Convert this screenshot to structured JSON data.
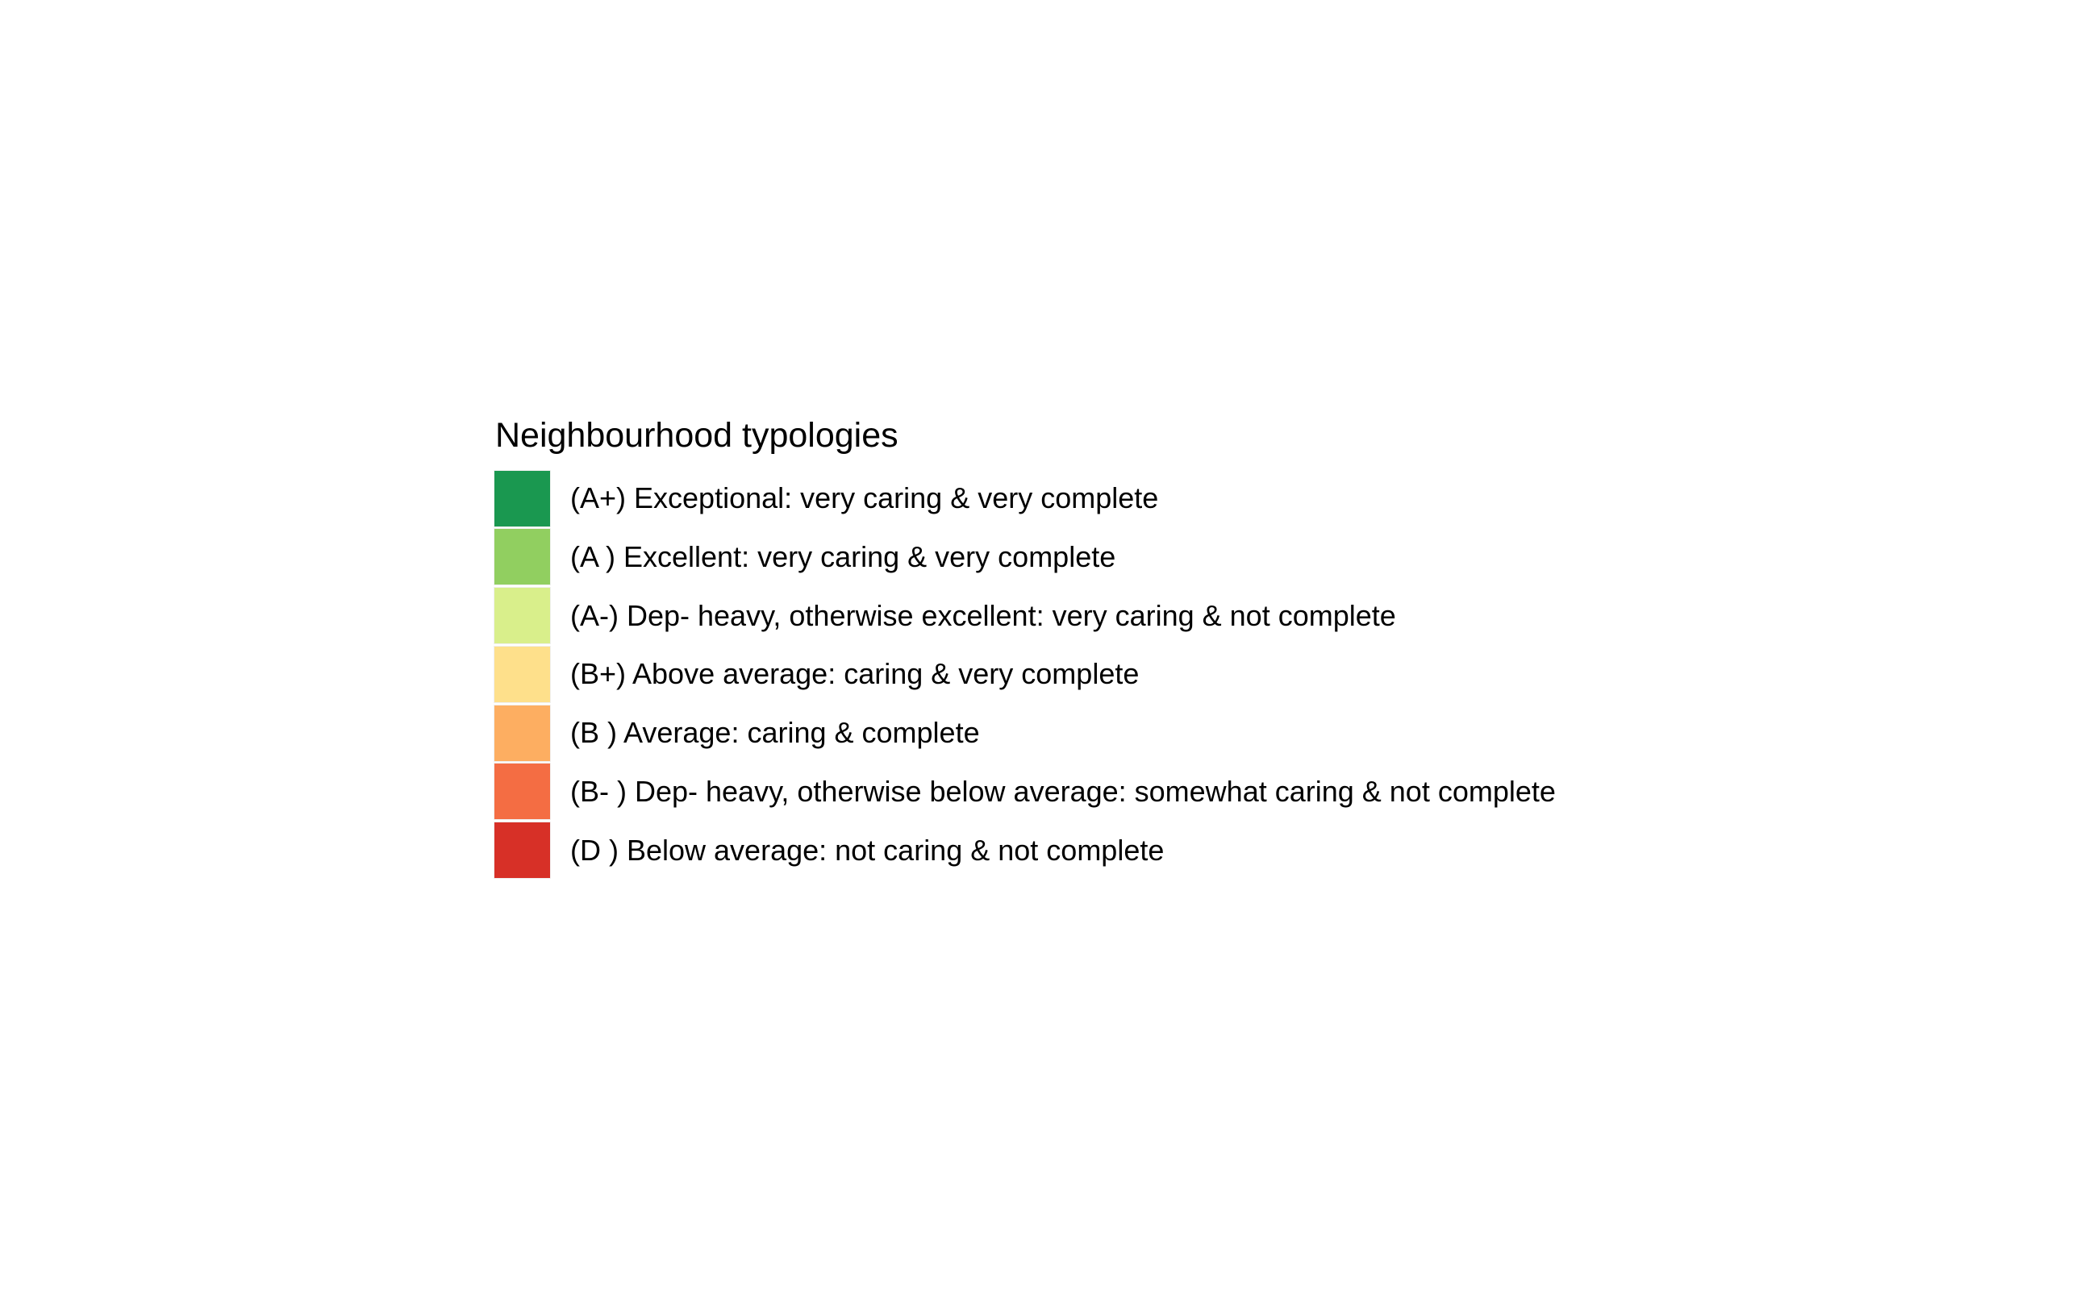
{
  "legend": {
    "title": "Neighbourhood typologies",
    "items": [
      {
        "label": "(A+) Exceptional: very caring & very complete",
        "color": "#1a9850"
      },
      {
        "label": "(A ) Excellent: very caring & very complete",
        "color": "#91cf60"
      },
      {
        "label": "(A-) Dep- heavy, otherwise excellent: very caring & not complete",
        "color": "#d9ef8b"
      },
      {
        "label": "(B+) Above average: caring & very complete",
        "color": "#fee08b"
      },
      {
        "label": "(B ) Average: caring & complete",
        "color": "#fdae61"
      },
      {
        "label": "(B- ) Dep- heavy, otherwise below average: somewhat caring & not complete",
        "color": "#f46d43"
      },
      {
        "label": "(D ) Below average: not caring & not complete",
        "color": "#d73027"
      }
    ]
  }
}
